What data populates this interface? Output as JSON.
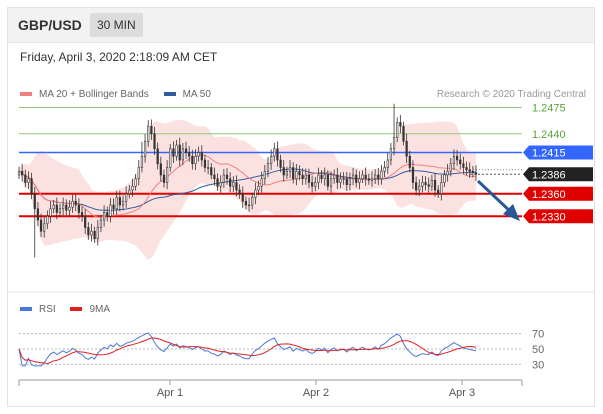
{
  "header": {
    "pair": "GBP/USD",
    "timeframe": "30 MIN"
  },
  "datetime": "Friday, April 3, 2020 2:18:09 AM CET",
  "credit": "Research © 2020 Trading Central",
  "main_legend": [
    {
      "label": "MA 20 + Bollinger Bands",
      "color": "#f08080"
    },
    {
      "label": "MA 50",
      "color": "#2e5e9e"
    }
  ],
  "rsi_legend": [
    {
      "label": "RSI",
      "color": "#4a78d6"
    },
    {
      "label": "9MA",
      "color": "#e02020"
    }
  ],
  "colors": {
    "resistance": "#8fc77a",
    "pivot": "#3366ff",
    "support": "#e00000",
    "current": "#222222",
    "arrow": "#2b5797"
  },
  "chart_data": [
    {
      "type": "candlestick",
      "x_ticks": [
        "Apr 1",
        "Apr 2",
        "Apr 3"
      ],
      "ylim": [
        1.2265,
        1.2485
      ],
      "levels": [
        {
          "value": 1.2475,
          "label": "1.2475",
          "kind": "resistance"
        },
        {
          "value": 1.244,
          "label": "1.2440",
          "kind": "resistance"
        },
        {
          "value": 1.2415,
          "label": "1.2415",
          "kind": "pivot"
        },
        {
          "value": 1.2386,
          "label": "1.2386",
          "kind": "current"
        },
        {
          "value": 1.236,
          "label": "1.2360",
          "kind": "support"
        },
        {
          "value": 1.233,
          "label": "1.2330",
          "kind": "support"
        }
      ],
      "close": [
        1.239,
        1.2385,
        1.2375,
        1.238,
        1.236,
        1.234,
        1.2325,
        1.231,
        1.232,
        1.233,
        1.234,
        1.2345,
        1.2335,
        1.234,
        1.2345,
        1.2338,
        1.2342,
        1.235,
        1.2345,
        1.2335,
        1.233,
        1.2315,
        1.2305,
        1.231,
        1.23,
        1.2315,
        1.2325,
        1.2335,
        1.233,
        1.2345,
        1.234,
        1.2355,
        1.2345,
        1.235,
        1.236,
        1.2365,
        1.237,
        1.238,
        1.2395,
        1.241,
        1.243,
        1.245,
        1.244,
        1.242,
        1.24,
        1.2385,
        1.2375,
        1.2395,
        1.242,
        1.241,
        1.2425,
        1.2405,
        1.242,
        1.2415,
        1.241,
        1.24,
        1.241,
        1.2415,
        1.2405,
        1.2395,
        1.2395,
        1.2385,
        1.238,
        1.237,
        1.2375,
        1.2385,
        1.238,
        1.237,
        1.2375,
        1.2365,
        1.236,
        1.235,
        1.2345,
        1.2345,
        1.2355,
        1.2365,
        1.237,
        1.238,
        1.239,
        1.24,
        1.241,
        1.242,
        1.2405,
        1.2395,
        1.2385,
        1.239,
        1.2395,
        1.238,
        1.239,
        1.2385,
        1.238,
        1.2385,
        1.2375,
        1.237,
        1.2375,
        1.2385,
        1.238,
        1.2385,
        1.237,
        1.238,
        1.2385,
        1.2375,
        1.238,
        1.238,
        1.2372,
        1.238,
        1.2385,
        1.2375,
        1.238,
        1.2385,
        1.238,
        1.2378,
        1.238,
        1.2385,
        1.238,
        1.239,
        1.2395,
        1.2405,
        1.242,
        1.2435,
        1.2455,
        1.245,
        1.243,
        1.241,
        1.2395,
        1.2375,
        1.2365,
        1.237,
        1.2375,
        1.2372,
        1.237,
        1.2378,
        1.2365,
        1.236,
        1.2375,
        1.2385,
        1.239,
        1.24,
        1.241,
        1.2405,
        1.24,
        1.2395,
        1.2392,
        1.239,
        1.2388,
        1.2386
      ],
      "rsi": {
        "ylim": [
          20,
          80
        ],
        "ticks": [
          70,
          50,
          30
        ]
      }
    }
  ]
}
